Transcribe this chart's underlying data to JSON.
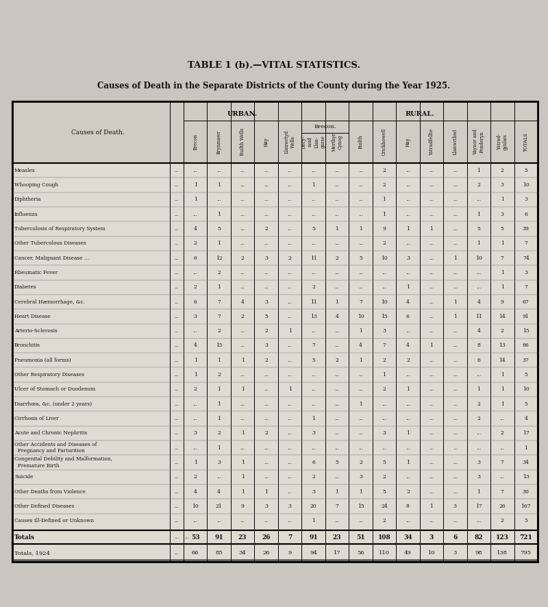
{
  "title1": "TABLE 1 (b).—VITAL STATISTICS.",
  "title2": "Causes of Death in the Separate Districts of the County during the Year 1925.",
  "urban_header": "URBAN.",
  "rural_header": "RURAL.",
  "brecon_sub": "Brecon.",
  "col_header_names": [
    "Brecon",
    "Brynmawr",
    "Builth Wells",
    "Hay",
    "Llanwrtyd\nWells",
    "Decy-\nnoid\nLlan-\ngorse",
    "Merthyr\nCynog",
    "Builth",
    "Crickhowell",
    "Hay",
    "Ystradfellte",
    "Llanwrthwl",
    "Vaynor and\nPenderyn",
    "Ystrad-\ngynlais",
    "TOTALS"
  ],
  "causes": [
    "Measles",
    "Whooping Cough",
    "Diphtheria",
    "Influenza",
    "Tuberculosis of Respiratory System",
    "Other Tuberculous Diseases",
    "Cancer, Malignant Disease ...",
    "Rheumatic Fever",
    "Diabetes",
    "Cerebral Hæmorrhage, &c.",
    "Heart Disease",
    "Arterio-Sclerosis",
    "Bronchitis",
    "Pneumonia (all forms)",
    "Other Respiratory Diseases",
    "Ulcer of Stomach or Duodenum",
    "Diarrhœa, &c. (under 2 years)",
    "Cirrhosis of Liver",
    "Acute and Chronic Nephritis",
    "Other Accidents and Diseases of\n  Pregnancy and Parturition",
    "Congenital Debility and Malformation,\n  Premature Birth",
    "Suicide",
    "Other Deaths from Violence",
    "Other Defined Diseases",
    "Causes Ill-Defined or Unknown"
  ],
  "cause_dots": [
    [
      "...",
      "..."
    ],
    [
      "...",
      "..."
    ],
    [
      "...",
      "..."
    ],
    [
      "...",
      "..."
    ],
    [
      "...",
      "..."
    ],
    [
      "...",
      "..."
    ],
    [
      "...",
      "..."
    ],
    [
      "...",
      "..."
    ],
    [
      "...",
      "..."
    ],
    [
      "...",
      "..."
    ],
    [
      "...",
      "..."
    ],
    [
      "...",
      "..."
    ],
    [
      "...",
      "..."
    ],
    [
      "...",
      "..."
    ],
    [
      "...",
      "..."
    ],
    [
      "...",
      "..."
    ],
    [
      "...",
      "..."
    ],
    [
      "...",
      "..."
    ],
    [
      "...",
      "..."
    ],
    [
      "...",
      "..."
    ],
    [
      "...",
      "..."
    ],
    [
      "...",
      "..."
    ],
    [
      "...",
      "..."
    ],
    [
      "...",
      "..."
    ],
    [
      "...",
      "..."
    ]
  ],
  "data": [
    [
      "...",
      "...",
      "...",
      "...",
      "...",
      "...",
      "...",
      "...",
      "2",
      "...",
      "...",
      "...",
      "1",
      "2",
      "5"
    ],
    [
      "1",
      "1",
      "...",
      "...",
      "...",
      "1",
      "...",
      "...",
      "2",
      "...",
      "...",
      "...",
      "2",
      "3",
      "10"
    ],
    [
      "1",
      "...",
      "...",
      "...",
      "...",
      "...",
      "...",
      "...",
      "1",
      "...",
      "...",
      "...",
      "...",
      "1",
      "3"
    ],
    [
      "...",
      "1",
      "...",
      "...",
      "...",
      "...",
      "...",
      "...",
      "1",
      "...",
      "...",
      "...",
      "1",
      "3",
      "6"
    ],
    [
      "4",
      "5",
      "...",
      "2",
      "...",
      "5",
      "1",
      "1",
      "9",
      "1",
      "1",
      "...",
      "5",
      "5",
      "39"
    ],
    [
      "2",
      "1",
      "...",
      "...",
      "...",
      "...",
      "...",
      "...",
      "2",
      "...",
      "...",
      "...",
      "1",
      "1",
      "7"
    ],
    [
      "6",
      "12",
      "2",
      "3",
      "2",
      "11",
      "2",
      "5",
      "10",
      "3",
      "...",
      "1",
      "10",
      "7",
      "74"
    ],
    [
      "...",
      "2",
      "...",
      "...",
      "...",
      "...",
      "...",
      "...",
      "...",
      "...",
      "...",
      "...",
      "...",
      "1",
      "3"
    ],
    [
      "2",
      "1",
      "...",
      "...",
      "...",
      "2",
      "...",
      "...",
      "...",
      "1",
      "...",
      "...",
      "...",
      "1",
      "7"
    ],
    [
      "6",
      "7",
      "4",
      "3",
      "...",
      "11",
      "1",
      "7",
      "10",
      "4",
      "...",
      "1",
      "4",
      "9",
      "67"
    ],
    [
      "3",
      "7",
      "2",
      "5",
      "...",
      "13",
      "4",
      "10",
      "15",
      "6",
      "...",
      "1",
      "11",
      "14",
      "91"
    ],
    [
      "...",
      "2",
      "...",
      "2",
      "1",
      "...",
      "...",
      "1",
      "3",
      "...",
      "...",
      "...",
      "4",
      "2",
      "15"
    ],
    [
      "4",
      "15",
      "...",
      "3",
      "...",
      "7",
      "...",
      "4",
      "7",
      "4",
      "1",
      "...",
      "8",
      "13",
      "66"
    ],
    [
      "1",
      "1",
      "1",
      "2",
      "...",
      "5",
      "2",
      "1",
      "2",
      "2",
      "...",
      "...",
      "6",
      "14",
      "37"
    ],
    [
      "1",
      "2",
      "...",
      "...",
      "...",
      "...",
      "...",
      "...",
      "1",
      "...",
      "...",
      "...",
      "...",
      "1",
      "5"
    ],
    [
      "2",
      "1",
      "1",
      "...",
      "1",
      "...",
      "...",
      "...",
      "2",
      "1",
      "...",
      "...",
      "1",
      "1",
      "10"
    ],
    [
      "...",
      "1",
      "...",
      "...",
      "...",
      "...",
      "...",
      "1",
      "...",
      "...",
      "...",
      "...",
      "2",
      "1",
      "5"
    ],
    [
      "...",
      "1",
      "...",
      "...",
      "...",
      "1",
      "...",
      "...",
      "...",
      "...",
      "...",
      "...",
      "2",
      "...",
      "4"
    ],
    [
      "3",
      "2",
      "1",
      "2",
      "...",
      "3",
      "...",
      "...",
      "3",
      "1",
      "...",
      "...",
      "...",
      "2",
      "17"
    ],
    [
      "...",
      "1",
      "...",
      "...",
      "...",
      "...",
      "...",
      "...",
      "...",
      "...",
      "...",
      "...",
      "...",
      "...",
      "1"
    ],
    [
      "1",
      "3",
      "1",
      "...",
      "...",
      "6",
      "5",
      "2",
      "5",
      "1",
      "...",
      "...",
      "3",
      "7",
      "34"
    ],
    [
      "2",
      "...",
      "1",
      "...",
      "...",
      "2",
      "...",
      "3",
      "2",
      "...",
      "...",
      "...",
      "3",
      "...",
      "13"
    ],
    [
      "4",
      "4",
      "1",
      "1",
      "...",
      "3",
      "1",
      "1",
      "5",
      "2",
      "...",
      "...",
      "1",
      "7",
      "30"
    ],
    [
      "10",
      "21",
      "9",
      "3",
      "3",
      "20",
      "7",
      "15",
      "24",
      "8",
      "1",
      "3",
      "17",
      "26",
      "167"
    ],
    [
      "...",
      "...",
      "...",
      "...",
      "...",
      "1",
      "...",
      "...",
      "2",
      "...",
      "...",
      "...",
      "...",
      "2",
      "5"
    ]
  ],
  "totals_row": [
    "53",
    "91",
    "23",
    "26",
    "7",
    "91",
    "23",
    "51",
    "108",
    "34",
    "3",
    "6",
    "82",
    "123",
    "721"
  ],
  "totals_1924": [
    "66",
    "85",
    "34",
    "26",
    "9",
    "94",
    "17",
    "56",
    "110",
    "49",
    "10",
    "3",
    "98",
    "138",
    "795"
  ],
  "bg_color": "#cac5be",
  "table_bg": "#e0dbd2",
  "text_color": "#111111"
}
